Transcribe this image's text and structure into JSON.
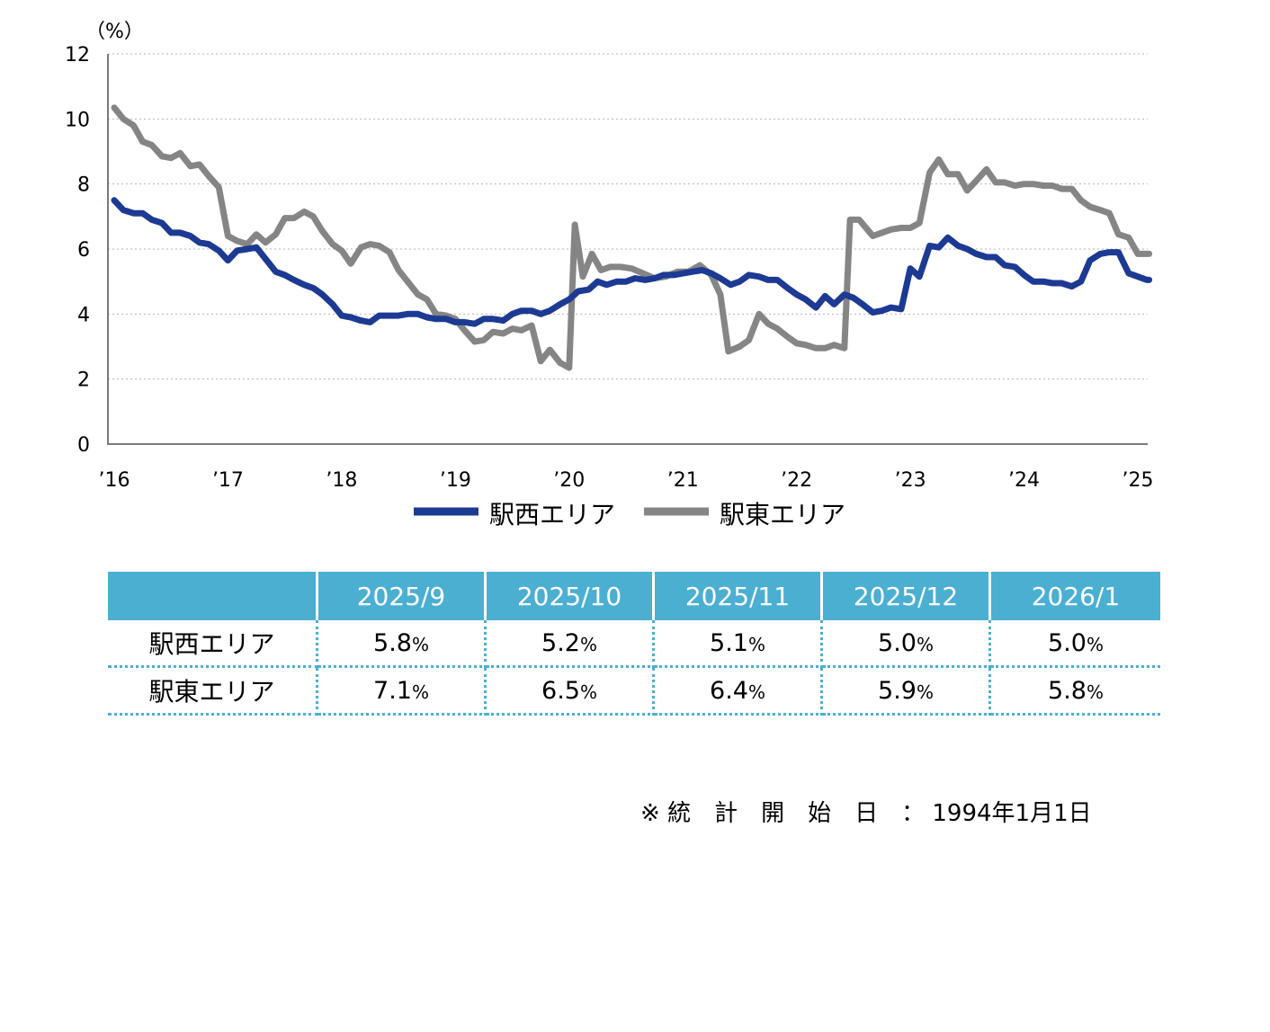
{
  "chart_data": {
    "type": "line",
    "y_unit_label": "（%）",
    "ylim": [
      0,
      12
    ],
    "y_ticks": [
      0,
      2,
      4,
      6,
      8,
      10,
      12
    ],
    "xlim": [
      2016,
      2025.1
    ],
    "x_ticks": [
      {
        "value": 2016,
        "label": "’16"
      },
      {
        "value": 2017,
        "label": "’17"
      },
      {
        "value": 2018,
        "label": "’18"
      },
      {
        "value": 2019,
        "label": "’19"
      },
      {
        "value": 2020,
        "label": "’20"
      },
      {
        "value": 2021,
        "label": "’21"
      },
      {
        "value": 2022,
        "label": "’22"
      },
      {
        "value": 2023,
        "label": "’23"
      },
      {
        "value": 2024,
        "label": "’24"
      },
      {
        "value": 2025,
        "label": "’25"
      }
    ],
    "grid": "horizontal-dotted",
    "legend_position": "bottom-center",
    "series": [
      {
        "name": "駅西エリア",
        "color": "#1d3a93",
        "points": [
          [
            2016.0,
            7.5
          ],
          [
            2016.08,
            7.2
          ],
          [
            2016.17,
            7.1
          ],
          [
            2016.25,
            7.1
          ],
          [
            2016.33,
            6.9
          ],
          [
            2016.42,
            6.8
          ],
          [
            2016.5,
            6.5
          ],
          [
            2016.58,
            6.5
          ],
          [
            2016.67,
            6.4
          ],
          [
            2016.75,
            6.2
          ],
          [
            2016.83,
            6.15
          ],
          [
            2016.92,
            5.95
          ],
          [
            2017.0,
            5.65
          ],
          [
            2017.08,
            5.95
          ],
          [
            2017.17,
            6.0
          ],
          [
            2017.25,
            6.05
          ],
          [
            2017.33,
            5.7
          ],
          [
            2017.42,
            5.3
          ],
          [
            2017.5,
            5.2
          ],
          [
            2017.58,
            5.05
          ],
          [
            2017.67,
            4.9
          ],
          [
            2017.75,
            4.8
          ],
          [
            2017.83,
            4.6
          ],
          [
            2017.92,
            4.3
          ],
          [
            2018.0,
            3.95
          ],
          [
            2018.08,
            3.9
          ],
          [
            2018.17,
            3.8
          ],
          [
            2018.25,
            3.75
          ],
          [
            2018.33,
            3.95
          ],
          [
            2018.42,
            3.95
          ],
          [
            2018.5,
            3.95
          ],
          [
            2018.58,
            4.0
          ],
          [
            2018.67,
            4.0
          ],
          [
            2018.75,
            3.9
          ],
          [
            2018.83,
            3.85
          ],
          [
            2018.92,
            3.85
          ],
          [
            2019.0,
            3.75
          ],
          [
            2019.08,
            3.75
          ],
          [
            2019.17,
            3.7
          ],
          [
            2019.25,
            3.85
          ],
          [
            2019.33,
            3.85
          ],
          [
            2019.42,
            3.8
          ],
          [
            2019.5,
            4.0
          ],
          [
            2019.58,
            4.1
          ],
          [
            2019.67,
            4.1
          ],
          [
            2019.75,
            4.0
          ],
          [
            2019.83,
            4.1
          ],
          [
            2019.92,
            4.3
          ],
          [
            2020.0,
            4.45
          ],
          [
            2020.08,
            4.7
          ],
          [
            2020.17,
            4.75
          ],
          [
            2020.25,
            5.0
          ],
          [
            2020.33,
            4.9
          ],
          [
            2020.42,
            5.0
          ],
          [
            2020.5,
            5.0
          ],
          [
            2020.58,
            5.1
          ],
          [
            2020.67,
            5.05
          ],
          [
            2020.75,
            5.1
          ],
          [
            2020.83,
            5.2
          ],
          [
            2020.92,
            5.2
          ],
          [
            2021.0,
            5.25
          ],
          [
            2021.08,
            5.3
          ],
          [
            2021.17,
            5.35
          ],
          [
            2021.25,
            5.25
          ],
          [
            2021.33,
            5.1
          ],
          [
            2021.42,
            4.9
          ],
          [
            2021.5,
            5.0
          ],
          [
            2021.58,
            5.2
          ],
          [
            2021.67,
            5.15
          ],
          [
            2021.75,
            5.05
          ],
          [
            2021.83,
            5.05
          ],
          [
            2021.92,
            4.8
          ],
          [
            2022.0,
            4.6
          ],
          [
            2022.08,
            4.45
          ],
          [
            2022.17,
            4.2
          ],
          [
            2022.25,
            4.55
          ],
          [
            2022.33,
            4.3
          ],
          [
            2022.42,
            4.6
          ],
          [
            2022.5,
            4.5
          ],
          [
            2022.58,
            4.3
          ],
          [
            2022.67,
            4.05
          ],
          [
            2022.75,
            4.1
          ],
          [
            2022.83,
            4.2
          ],
          [
            2022.92,
            4.15
          ],
          [
            2023.0,
            5.4
          ],
          [
            2023.08,
            5.15
          ],
          [
            2023.17,
            6.1
          ],
          [
            2023.25,
            6.05
          ],
          [
            2023.33,
            6.35
          ],
          [
            2023.42,
            6.1
          ],
          [
            2023.5,
            6.0
          ],
          [
            2023.58,
            5.85
          ],
          [
            2023.67,
            5.75
          ],
          [
            2023.75,
            5.75
          ],
          [
            2023.83,
            5.5
          ],
          [
            2023.92,
            5.45
          ],
          [
            2024.0,
            5.2
          ],
          [
            2024.08,
            5.0
          ],
          [
            2024.17,
            5.0
          ],
          [
            2024.25,
            4.95
          ],
          [
            2024.33,
            4.95
          ],
          [
            2024.42,
            4.85
          ],
          [
            2024.5,
            5.0
          ],
          [
            2024.58,
            5.65
          ],
          [
            2024.67,
            5.85
          ],
          [
            2024.75,
            5.9
          ],
          [
            2024.83,
            5.9
          ],
          [
            2024.92,
            5.25
          ],
          [
            2025.0,
            5.15
          ],
          [
            2025.08,
            5.05
          ],
          [
            2025.1,
            5.05
          ]
        ]
      },
      {
        "name": "駅東エリア",
        "color": "#858585",
        "points": [
          [
            2016.0,
            10.35
          ],
          [
            2016.08,
            10.0
          ],
          [
            2016.17,
            9.8
          ],
          [
            2016.25,
            9.3
          ],
          [
            2016.33,
            9.2
          ],
          [
            2016.42,
            8.85
          ],
          [
            2016.5,
            8.8
          ],
          [
            2016.58,
            8.95
          ],
          [
            2016.67,
            8.55
          ],
          [
            2016.75,
            8.6
          ],
          [
            2016.83,
            8.25
          ],
          [
            2016.92,
            7.9
          ],
          [
            2017.0,
            6.4
          ],
          [
            2017.08,
            6.25
          ],
          [
            2017.17,
            6.15
          ],
          [
            2017.25,
            6.45
          ],
          [
            2017.33,
            6.2
          ],
          [
            2017.42,
            6.45
          ],
          [
            2017.5,
            6.95
          ],
          [
            2017.58,
            6.95
          ],
          [
            2017.67,
            7.15
          ],
          [
            2017.75,
            7.0
          ],
          [
            2017.83,
            6.55
          ],
          [
            2017.92,
            6.15
          ],
          [
            2018.0,
            5.95
          ],
          [
            2018.08,
            5.55
          ],
          [
            2018.17,
            6.05
          ],
          [
            2018.25,
            6.15
          ],
          [
            2018.33,
            6.1
          ],
          [
            2018.42,
            5.9
          ],
          [
            2018.5,
            5.35
          ],
          [
            2018.58,
            5.0
          ],
          [
            2018.67,
            4.6
          ],
          [
            2018.75,
            4.45
          ],
          [
            2018.83,
            4.0
          ],
          [
            2018.92,
            3.95
          ],
          [
            2019.0,
            3.85
          ],
          [
            2019.08,
            3.5
          ],
          [
            2019.17,
            3.15
          ],
          [
            2019.25,
            3.2
          ],
          [
            2019.33,
            3.45
          ],
          [
            2019.42,
            3.4
          ],
          [
            2019.5,
            3.55
          ],
          [
            2019.58,
            3.5
          ],
          [
            2019.67,
            3.65
          ],
          [
            2019.75,
            2.55
          ],
          [
            2019.83,
            2.9
          ],
          [
            2019.92,
            2.5
          ],
          [
            2020.0,
            2.35
          ],
          [
            2020.05,
            6.75
          ],
          [
            2020.12,
            5.15
          ],
          [
            2020.2,
            5.85
          ],
          [
            2020.28,
            5.35
          ],
          [
            2020.36,
            5.45
          ],
          [
            2020.45,
            5.45
          ],
          [
            2020.55,
            5.4
          ],
          [
            2020.65,
            5.25
          ],
          [
            2020.75,
            5.1
          ],
          [
            2020.85,
            5.15
          ],
          [
            2020.95,
            5.3
          ],
          [
            2021.05,
            5.3
          ],
          [
            2021.15,
            5.5
          ],
          [
            2021.25,
            5.2
          ],
          [
            2021.33,
            4.6
          ],
          [
            2021.4,
            2.85
          ],
          [
            2021.5,
            3.0
          ],
          [
            2021.58,
            3.2
          ],
          [
            2021.67,
            4.0
          ],
          [
            2021.75,
            3.7
          ],
          [
            2021.83,
            3.55
          ],
          [
            2021.92,
            3.3
          ],
          [
            2022.0,
            3.1
          ],
          [
            2022.08,
            3.05
          ],
          [
            2022.17,
            2.95
          ],
          [
            2022.25,
            2.95
          ],
          [
            2022.33,
            3.05
          ],
          [
            2022.42,
            2.95
          ],
          [
            2022.47,
            6.9
          ],
          [
            2022.55,
            6.9
          ],
          [
            2022.67,
            6.4
          ],
          [
            2022.75,
            6.5
          ],
          [
            2022.83,
            6.6
          ],
          [
            2022.92,
            6.65
          ],
          [
            2023.0,
            6.65
          ],
          [
            2023.08,
            6.8
          ],
          [
            2023.17,
            8.35
          ],
          [
            2023.25,
            8.75
          ],
          [
            2023.33,
            8.3
          ],
          [
            2023.42,
            8.3
          ],
          [
            2023.5,
            7.8
          ],
          [
            2023.58,
            8.1
          ],
          [
            2023.67,
            8.45
          ],
          [
            2023.75,
            8.05
          ],
          [
            2023.83,
            8.05
          ],
          [
            2023.92,
            7.95
          ],
          [
            2024.0,
            8.0
          ],
          [
            2024.08,
            8.0
          ],
          [
            2024.17,
            7.95
          ],
          [
            2024.25,
            7.95
          ],
          [
            2024.33,
            7.85
          ],
          [
            2024.42,
            7.85
          ],
          [
            2024.5,
            7.5
          ],
          [
            2024.58,
            7.3
          ],
          [
            2024.67,
            7.2
          ],
          [
            2024.75,
            7.1
          ],
          [
            2024.83,
            6.45
          ],
          [
            2024.92,
            6.35
          ],
          [
            2025.0,
            5.85
          ],
          [
            2025.08,
            5.85
          ],
          [
            2025.1,
            5.85
          ]
        ]
      }
    ]
  },
  "table": {
    "columns": [
      "",
      "2025/9",
      "2025/10",
      "2025/11",
      "2025/12",
      "2026/1"
    ],
    "rows": [
      {
        "label": "駅西エリア",
        "values": [
          "5.8",
          "5.2",
          "5.1",
          "5.0",
          "5.0"
        ],
        "unit": "%"
      },
      {
        "label": "駅東エリア",
        "values": [
          "7.1",
          "6.5",
          "6.4",
          "5.9",
          "5.8"
        ],
        "unit": "%"
      }
    ]
  },
  "footnote": {
    "mark": "※",
    "label": "統計開始日",
    "separator": "：",
    "date": "1994年1月1日"
  }
}
